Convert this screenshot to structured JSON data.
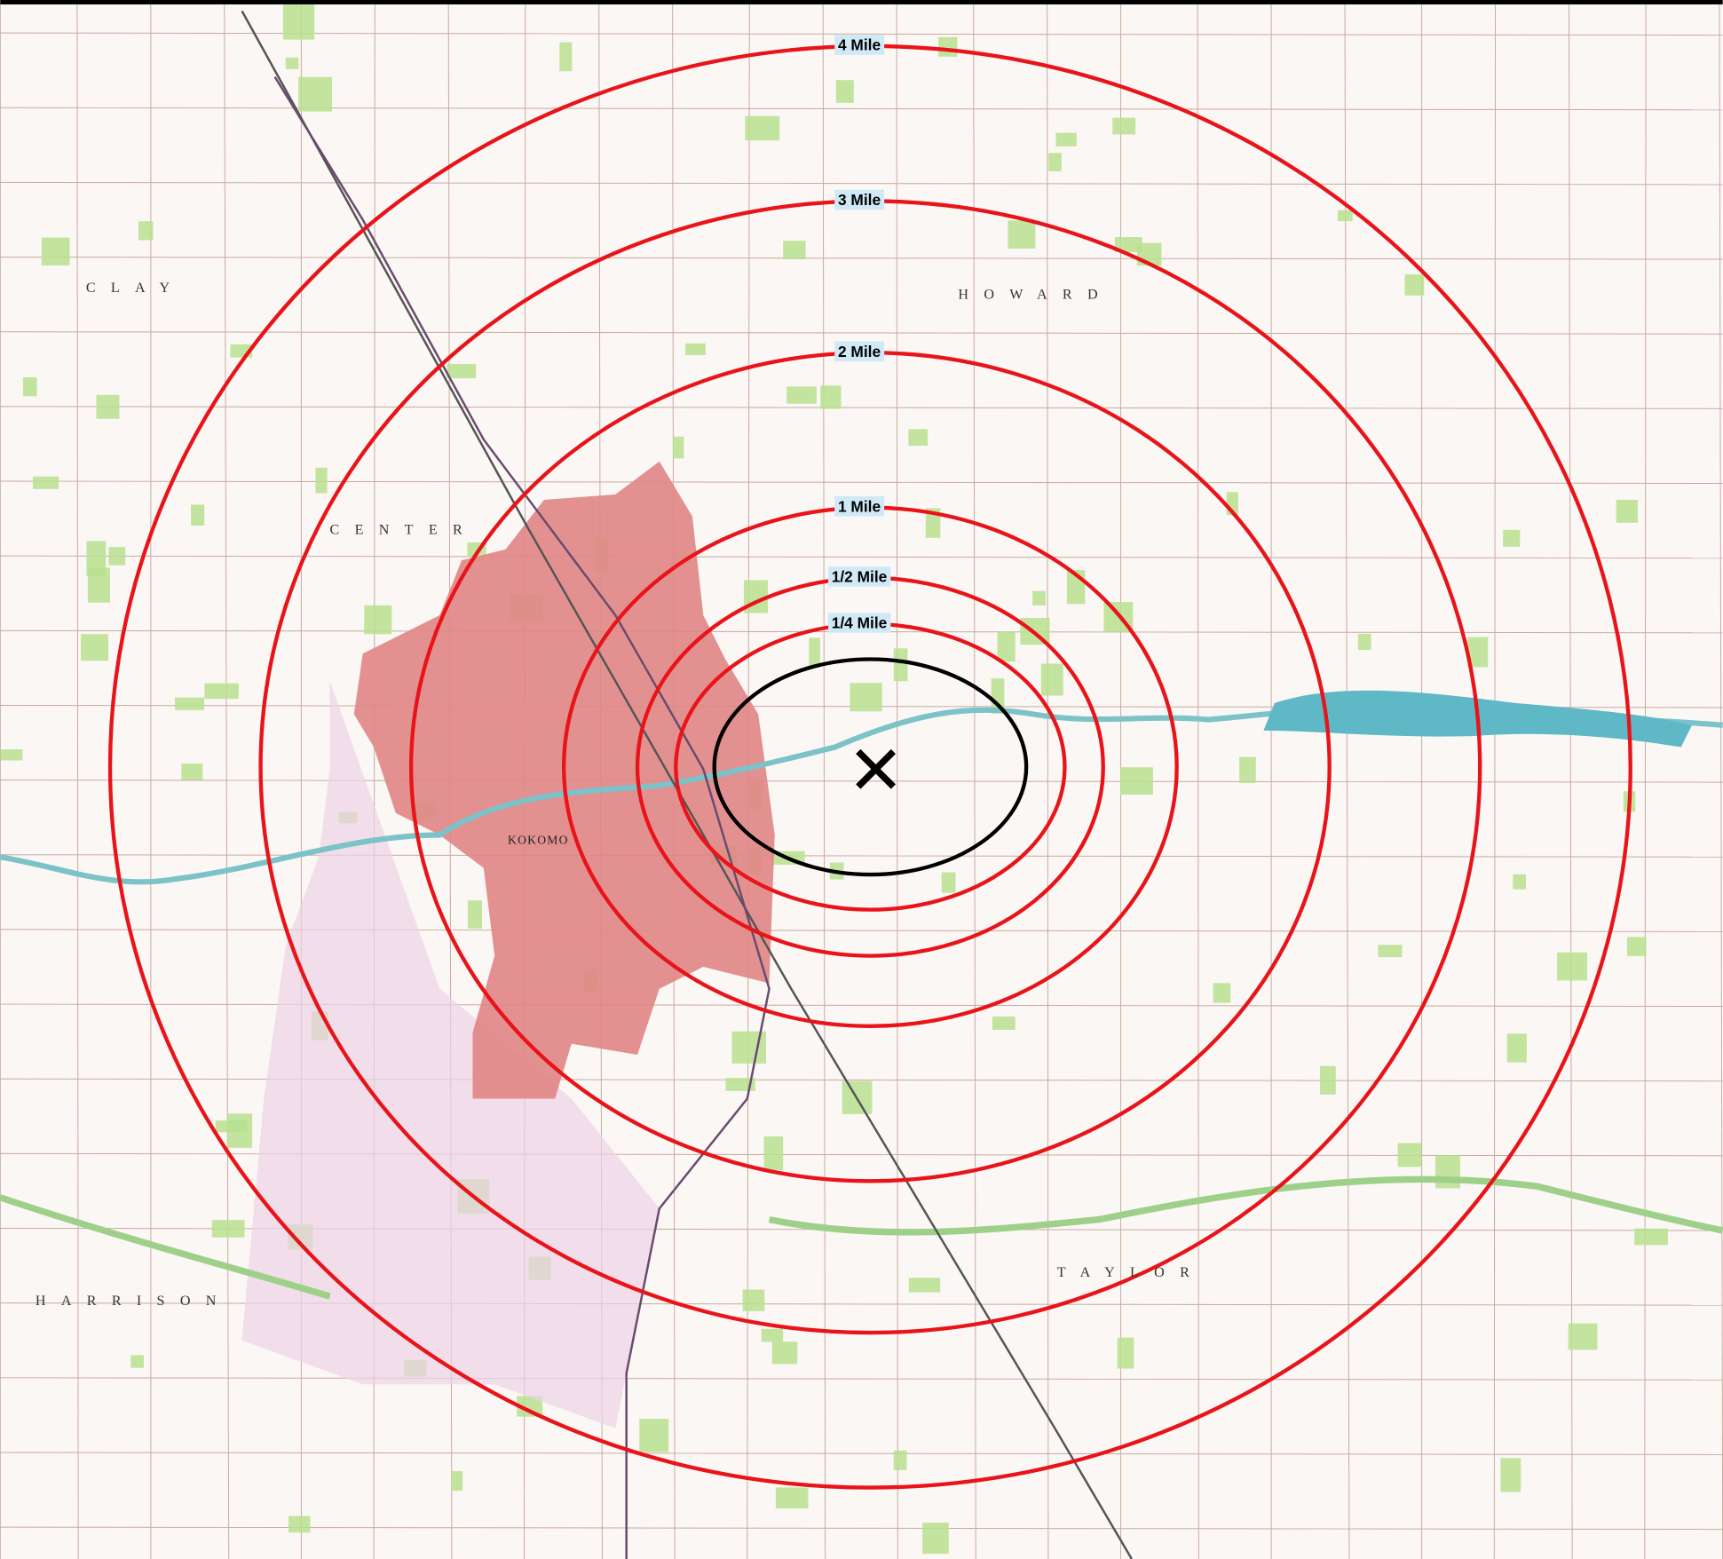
{
  "rings": [
    {
      "label": "4 Mile"
    },
    {
      "label": "3 Mile"
    },
    {
      "label": "2 Mile"
    },
    {
      "label": "1 Mile"
    },
    {
      "label": "1/2 Mile"
    },
    {
      "label": "1/4 Mile"
    }
  ],
  "map_labels": [
    "CLAY",
    "HOWARD",
    "CENTER",
    "KOKOMO",
    "HARRISON",
    "TAYLOR"
  ]
}
